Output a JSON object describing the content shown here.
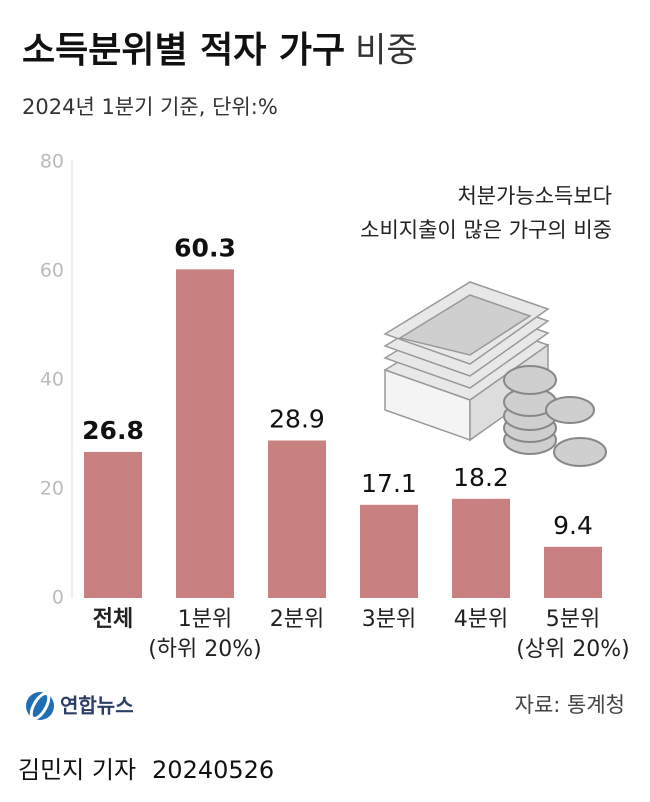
{
  "title": "소득분위별 적자 가구",
  "title_light": "비중",
  "subtitle": "2024년 1분기 기준, 단위:%",
  "chart_data": {
    "type": "bar",
    "categories": [
      "전체",
      "1분위\n(하위 20%)",
      "2분위",
      "3분위",
      "4분위",
      "5분위\n(상위 20%)"
    ],
    "highlight_category": 0,
    "values": [
      26.8,
      60.3,
      28.9,
      17.1,
      18.2,
      9.4
    ],
    "color": "#c98080",
    "ylim": [
      0,
      80
    ],
    "yticks": [
      0,
      20,
      40,
      60,
      80
    ],
    "grid": false,
    "annotation": [
      "처분가능소득보다",
      "소비지출이 많은 가구의 비중"
    ]
  },
  "logo": "연합뉴스",
  "source": "자료: 통계청",
  "credit": "김민지 기자",
  "date": "20240526"
}
